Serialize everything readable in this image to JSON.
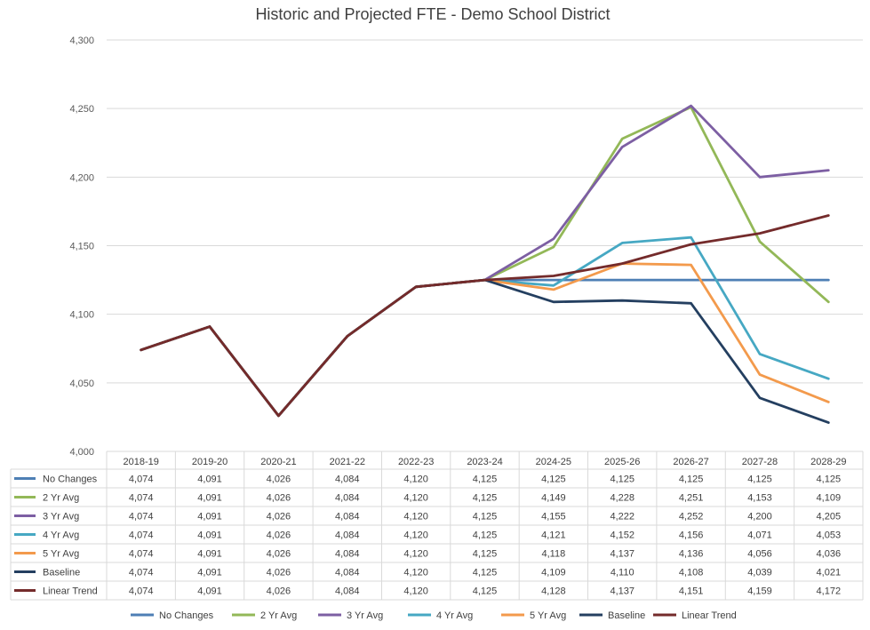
{
  "chart_data": {
    "type": "line",
    "title": "Historic and Projected FTE - Demo School District",
    "categories": [
      "2018-19",
      "2019-20",
      "2020-21",
      "2021-22",
      "2022-23",
      "2023-24",
      "2024-25",
      "2025-26",
      "2026-27",
      "2027-28",
      "2028-29"
    ],
    "ylim": [
      4000,
      4300
    ],
    "yticks": [
      4000,
      4050,
      4100,
      4150,
      4200,
      4250,
      4300
    ],
    "grid": true,
    "legend_position": "bottom",
    "data_table": true,
    "series": [
      {
        "name": "No Changes",
        "color": "#4e7fb5",
        "values": [
          4074,
          4091,
          4026,
          4084,
          4120,
          4125,
          4125,
          4125,
          4125,
          4125,
          4125
        ]
      },
      {
        "name": "2 Yr Avg",
        "color": "#93b858",
        "values": [
          4074,
          4091,
          4026,
          4084,
          4120,
          4125,
          4149,
          4228,
          4251,
          4153,
          4109
        ]
      },
      {
        "name": "3 Yr Avg",
        "color": "#7d5fa3",
        "values": [
          4074,
          4091,
          4026,
          4084,
          4120,
          4125,
          4155,
          4222,
          4252,
          4200,
          4205
        ]
      },
      {
        "name": "4 Yr Avg",
        "color": "#46a8c3",
        "values": [
          4074,
          4091,
          4026,
          4084,
          4120,
          4125,
          4121,
          4152,
          4156,
          4071,
          4053
        ]
      },
      {
        "name": "5 Yr Avg",
        "color": "#f39a4c",
        "values": [
          4074,
          4091,
          4026,
          4084,
          4120,
          4125,
          4118,
          4137,
          4136,
          4056,
          4036
        ]
      },
      {
        "name": "Baseline",
        "color": "#243f60",
        "values": [
          4074,
          4091,
          4026,
          4084,
          4120,
          4125,
          4109,
          4110,
          4108,
          4039,
          4021
        ]
      },
      {
        "name": "Linear Trend",
        "color": "#742b2b",
        "values": [
          4074,
          4091,
          4026,
          4084,
          4120,
          4125,
          4128,
          4137,
          4151,
          4159,
          4172
        ]
      }
    ]
  }
}
